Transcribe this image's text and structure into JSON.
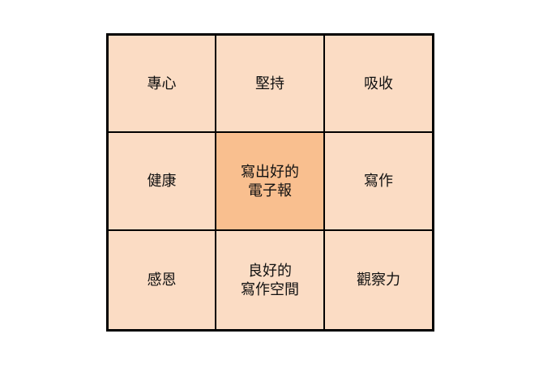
{
  "colors": {
    "cell_fill": "#fbdcc4",
    "center_fill": "#f9bf8f",
    "border": "#000000",
    "text": "#111111"
  },
  "grid": {
    "rows": 3,
    "cols": 3,
    "cells": [
      {
        "id": "cell-1",
        "text": "專心",
        "highlight": false
      },
      {
        "id": "cell-2",
        "text": "堅持",
        "highlight": false
      },
      {
        "id": "cell-3",
        "text": "吸收",
        "highlight": false
      },
      {
        "id": "cell-4",
        "text": "健康",
        "highlight": false
      },
      {
        "id": "cell-5",
        "text": "寫出好的\n電子報",
        "highlight": true
      },
      {
        "id": "cell-6",
        "text": "寫作",
        "highlight": false
      },
      {
        "id": "cell-7",
        "text": "感恩",
        "highlight": false
      },
      {
        "id": "cell-8",
        "text": "良好的\n寫作空間",
        "highlight": false
      },
      {
        "id": "cell-9",
        "text": "觀察力",
        "highlight": false
      }
    ]
  }
}
